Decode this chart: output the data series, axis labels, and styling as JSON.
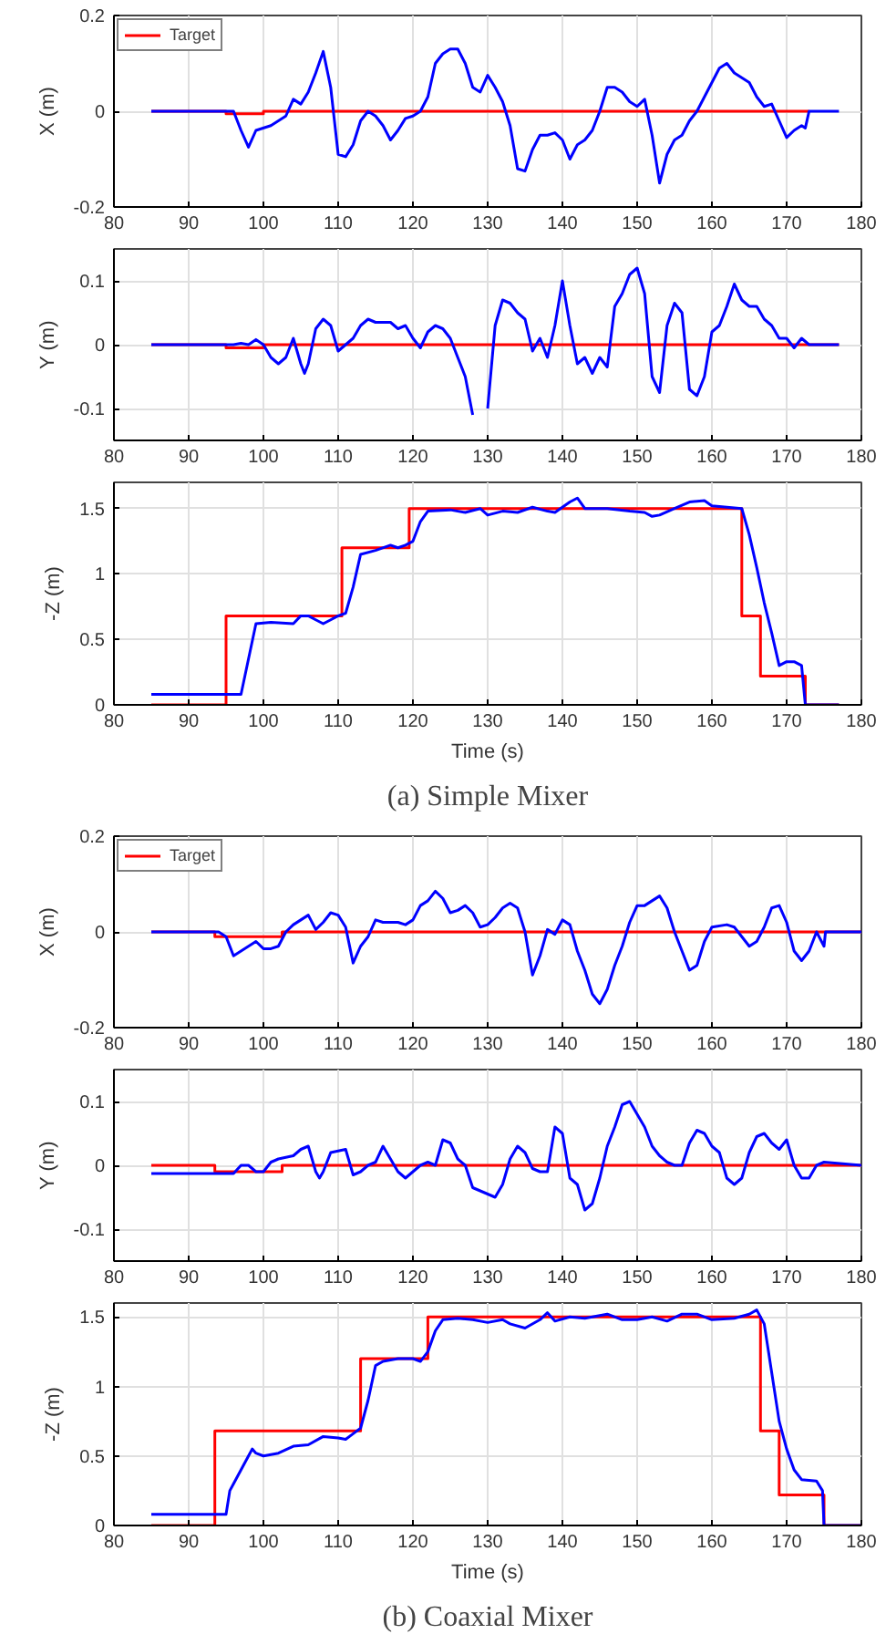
{
  "chart_data": [
    {
      "type": "line",
      "ylabel": "X (m)",
      "xlim": [
        80,
        180
      ],
      "xticks": [
        80,
        90,
        100,
        110,
        120,
        130,
        140,
        150,
        160,
        170,
        180
      ],
      "ylim": [
        -0.2,
        0.2
      ],
      "yticks": [
        -0.2,
        0,
        0.2
      ],
      "grid": true,
      "legend": "top left",
      "series": [
        {
          "name": "Target",
          "color": "#ff0000",
          "x": [
            85,
            95,
            95,
            100,
            100,
            173
          ],
          "values": [
            0,
            0,
            -0.005,
            -0.005,
            0,
            0
          ]
        },
        {
          "color": "#0000ff",
          "x": [
            85,
            96,
            97,
            98,
            99,
            101,
            103,
            104,
            105,
            106,
            107,
            108,
            109,
            110,
            111,
            112,
            113,
            114,
            115,
            116,
            117,
            118,
            119,
            120,
            121,
            122,
            123,
            124,
            125,
            126,
            127,
            128,
            129,
            130,
            131,
            132,
            133,
            134,
            135,
            136,
            137,
            138,
            139,
            140,
            141,
            142,
            143,
            144,
            145,
            146,
            147,
            148,
            149,
            150,
            151,
            152,
            153,
            154,
            155,
            156,
            157,
            158,
            159,
            160,
            161,
            162,
            163,
            164,
            165,
            166,
            167,
            168,
            169,
            170,
            171,
            172,
            172.5,
            173,
            177
          ],
          "values": [
            0,
            0,
            -0.04,
            -0.075,
            -0.04,
            -0.03,
            -0.01,
            0.025,
            0.015,
            0.04,
            0.08,
            0.125,
            0.05,
            -0.09,
            -0.095,
            -0.07,
            -0.02,
            0,
            -0.01,
            -0.03,
            -0.06,
            -0.04,
            -0.015,
            -0.01,
            0,
            0.03,
            0.1,
            0.12,
            0.13,
            0.13,
            0.1,
            0.05,
            0.04,
            0.075,
            0.05,
            0.02,
            -0.03,
            -0.12,
            -0.125,
            -0.08,
            -0.05,
            -0.05,
            -0.045,
            -0.06,
            -0.1,
            -0.07,
            -0.06,
            -0.04,
            0,
            0.05,
            0.05,
            0.04,
            0.02,
            0.01,
            0.025,
            -0.05,
            -0.15,
            -0.09,
            -0.06,
            -0.05,
            -0.02,
            0,
            0.03,
            0.06,
            0.09,
            0.1,
            0.08,
            0.07,
            0.06,
            0.03,
            0.01,
            0.015,
            -0.02,
            -0.055,
            -0.04,
            -0.03,
            -0.035,
            0,
            0
          ]
        }
      ]
    },
    {
      "type": "line",
      "ylabel": "Y (m)",
      "xlim": [
        80,
        180
      ],
      "xticks": [
        80,
        90,
        100,
        110,
        120,
        130,
        140,
        150,
        160,
        170,
        180
      ],
      "ylim": [
        -0.15,
        0.15
      ],
      "yticks": [
        -0.1,
        0,
        0.1
      ],
      "grid": true,
      "series": [
        {
          "color": "#ff0000",
          "x": [
            85,
            95,
            95,
            100,
            100,
            177
          ],
          "values": [
            0,
            0,
            -0.005,
            -0.005,
            0,
            0
          ]
        },
        {
          "color": "#0000ff",
          "x": [
            85,
            96,
            97,
            98,
            99,
            100,
            101,
            102,
            103,
            104,
            105,
            105.5,
            106,
            107,
            108,
            109,
            110,
            111,
            112,
            113,
            114,
            115,
            117,
            118,
            119,
            120,
            121,
            122,
            123,
            124,
            125,
            126,
            127,
            128,
            129,
            129.8,
            130,
            131,
            132,
            133,
            134,
            135,
            136,
            137,
            138,
            139,
            140,
            141,
            142,
            143,
            144,
            145,
            146,
            147,
            148,
            149,
            150,
            151,
            152,
            153,
            154,
            155,
            156,
            157,
            158,
            159,
            160,
            161,
            162,
            163,
            164,
            165,
            166,
            167,
            168,
            169,
            170,
            171,
            172,
            173,
            177
          ],
          "values": [
            0,
            0,
            0.002,
            0,
            0.008,
            0,
            -0.02,
            -0.03,
            -0.02,
            0.01,
            -0.03,
            -0.045,
            -0.03,
            0.025,
            0.04,
            0.03,
            -0.01,
            0,
            0.01,
            0.03,
            0.04,
            0.035,
            0.035,
            0.025,
            0.03,
            0.01,
            -0.005,
            0.02,
            0.03,
            0.025,
            0.01,
            -0.02,
            -0.05,
            -0.11,
            null,
            null,
            -0.1,
            0.03,
            0.07,
            0.065,
            0.05,
            0.04,
            -0.01,
            0.01,
            -0.02,
            0.03,
            0.1,
            0.03,
            -0.03,
            -0.02,
            -0.045,
            -0.02,
            -0.035,
            0.06,
            0.08,
            0.11,
            0.12,
            0.08,
            -0.05,
            -0.075,
            0.03,
            0.065,
            0.05,
            -0.07,
            -0.08,
            -0.05,
            0.02,
            0.03,
            0.06,
            0.095,
            0.07,
            0.06,
            0.06,
            0.04,
            0.03,
            0.01,
            0.01,
            -0.005,
            0.01,
            0,
            0
          ]
        }
      ]
    },
    {
      "type": "line",
      "ylabel": "-Z (m)",
      "xlabel": "Time (s)",
      "annotations": [
        "(a) Simple Mixer"
      ],
      "xlim": [
        80,
        180
      ],
      "xticks": [
        80,
        90,
        100,
        110,
        120,
        130,
        140,
        150,
        160,
        170,
        180
      ],
      "ylim": [
        0,
        1.7
      ],
      "yticks": [
        0,
        0.5,
        1,
        1.5
      ],
      "grid": true,
      "series": [
        {
          "color": "#ff0000",
          "x": [
            85,
            95,
            95,
            110.5,
            110.5,
            119.5,
            119.5,
            164,
            164,
            166.5,
            166.5,
            172.5,
            172.5,
            177
          ],
          "values": [
            0,
            0,
            0.68,
            0.68,
            1.2,
            1.2,
            1.5,
            1.5,
            0.68,
            0.68,
            0.22,
            0.22,
            0,
            0
          ]
        },
        {
          "color": "#0000ff",
          "x": [
            85,
            97,
            98,
            99,
            101,
            104,
            105,
            106,
            107,
            108,
            109,
            110,
            111,
            112,
            113,
            115,
            117,
            118,
            119,
            120,
            121,
            122,
            125,
            127,
            129,
            130,
            132,
            134,
            136,
            138,
            139,
            141,
            142,
            143,
            146,
            149,
            151,
            152,
            153,
            155,
            157,
            159,
            160,
            164,
            165,
            166,
            167,
            168,
            169,
            170,
            171,
            172,
            172.5,
            177
          ],
          "values": [
            0.08,
            0.08,
            0.35,
            0.62,
            0.63,
            0.62,
            0.68,
            0.68,
            0.65,
            0.62,
            0.65,
            0.68,
            0.7,
            0.9,
            1.15,
            1.18,
            1.22,
            1.2,
            1.22,
            1.25,
            1.4,
            1.48,
            1.49,
            1.47,
            1.5,
            1.45,
            1.48,
            1.47,
            1.51,
            1.48,
            1.47,
            1.55,
            1.58,
            1.5,
            1.5,
            1.48,
            1.47,
            1.44,
            1.45,
            1.5,
            1.55,
            1.56,
            1.52,
            1.5,
            1.3,
            1.05,
            0.78,
            0.55,
            0.3,
            0.33,
            0.33,
            0.3,
            0,
            0
          ]
        }
      ]
    },
    {
      "type": "line",
      "ylabel": "X (m)",
      "xlim": [
        80,
        180
      ],
      "xticks": [
        80,
        90,
        100,
        110,
        120,
        130,
        140,
        150,
        160,
        170,
        180
      ],
      "ylim": [
        -0.2,
        0.2
      ],
      "yticks": [
        -0.2,
        0,
        0.2
      ],
      "grid": true,
      "legend": "top left",
      "series": [
        {
          "name": "Target",
          "color": "#ff0000",
          "x": [
            85,
            93.5,
            93.5,
            102.5,
            102.5,
            180
          ],
          "values": [
            0,
            0,
            -0.01,
            -0.01,
            0,
            0
          ]
        },
        {
          "color": "#0000ff",
          "x": [
            85,
            94,
            95,
            96,
            97,
            98,
            99,
            100,
            101,
            102,
            103,
            104,
            105,
            106,
            107,
            108,
            109,
            110,
            111,
            112,
            113,
            114,
            115,
            116,
            118,
            119,
            120,
            121,
            122,
            123,
            124,
            125,
            126,
            127,
            128,
            129,
            130,
            131,
            132,
            133,
            134,
            135,
            136,
            137,
            138,
            139,
            140,
            141,
            142,
            143,
            144,
            145,
            146,
            147,
            148,
            149,
            150,
            151,
            152,
            153,
            154,
            155,
            156,
            157,
            158,
            159,
            160,
            162,
            163,
            164,
            165,
            166,
            167,
            168,
            169,
            170,
            171,
            172,
            173,
            174,
            175,
            175.2,
            180
          ],
          "values": [
            0,
            0,
            -0.01,
            -0.05,
            -0.04,
            -0.03,
            -0.02,
            -0.035,
            -0.035,
            -0.03,
            0,
            0.015,
            0.025,
            0.035,
            0.005,
            0.02,
            0.04,
            0.035,
            0.01,
            -0.065,
            -0.03,
            -0.01,
            0.025,
            0.02,
            0.02,
            0.015,
            0.025,
            0.055,
            0.065,
            0.085,
            0.07,
            0.04,
            0.045,
            0.055,
            0.04,
            0.01,
            0.015,
            0.03,
            0.05,
            0.06,
            0.05,
            0,
            -0.09,
            -0.05,
            0.005,
            -0.005,
            0.025,
            0.015,
            -0.04,
            -0.08,
            -0.13,
            -0.15,
            -0.12,
            -0.07,
            -0.03,
            0.02,
            0.055,
            0.055,
            0.065,
            0.075,
            0.05,
            0,
            -0.04,
            -0.08,
            -0.07,
            -0.02,
            0.01,
            0.015,
            0.01,
            -0.01,
            -0.03,
            -0.02,
            0.01,
            0.05,
            0.055,
            0.02,
            -0.04,
            -0.06,
            -0.04,
            0,
            -0.03,
            0,
            0
          ]
        }
      ]
    },
    {
      "type": "line",
      "ylabel": "Y (m)",
      "xlim": [
        80,
        180
      ],
      "xticks": [
        80,
        90,
        100,
        110,
        120,
        130,
        140,
        150,
        160,
        170,
        180
      ],
      "ylim": [
        -0.15,
        0.15
      ],
      "yticks": [
        -0.1,
        0,
        0.1
      ],
      "grid": true,
      "series": [
        {
          "color": "#ff0000",
          "x": [
            85,
            93.5,
            93.5,
            102.5,
            102.5,
            180
          ],
          "values": [
            0,
            0,
            -0.01,
            -0.01,
            0,
            0
          ]
        },
        {
          "color": "#0000ff",
          "x": [
            85,
            96,
            97,
            98,
            99,
            100,
            101,
            102,
            104,
            105,
            106,
            107,
            107.5,
            108,
            109,
            111,
            112,
            113,
            114,
            115,
            116,
            117,
            118,
            119,
            120,
            121,
            122,
            123,
            124,
            125,
            126,
            127,
            128,
            129,
            130,
            131,
            132,
            133,
            134,
            135,
            136,
            137,
            138,
            139,
            140,
            141,
            142,
            143,
            144,
            145,
            146,
            147,
            148,
            149,
            150,
            151,
            152,
            153,
            154,
            155,
            156,
            157,
            158,
            159,
            160,
            161,
            162,
            163,
            164,
            165,
            166,
            167,
            168,
            169,
            170,
            171,
            172,
            173,
            174,
            175,
            180
          ],
          "values": [
            -0.013,
            -0.013,
            0,
            0,
            -0.01,
            -0.01,
            0.005,
            0.01,
            0.015,
            0.025,
            0.03,
            -0.01,
            -0.02,
            -0.01,
            0.02,
            0.025,
            -0.015,
            -0.01,
            0,
            0.005,
            0.03,
            0.01,
            -0.01,
            -0.02,
            -0.01,
            0,
            0.005,
            0,
            0.04,
            0.035,
            0.01,
            0,
            -0.035,
            -0.04,
            -0.045,
            -0.05,
            -0.03,
            0.01,
            0.03,
            0.02,
            -0.005,
            -0.01,
            -0.01,
            0.06,
            0.05,
            -0.02,
            -0.03,
            -0.07,
            -0.06,
            -0.02,
            0.03,
            0.06,
            0.095,
            0.1,
            0.08,
            0.06,
            0.03,
            0.015,
            0.005,
            0,
            0,
            0.035,
            0.055,
            0.05,
            0.03,
            0.02,
            -0.02,
            -0.03,
            -0.02,
            0.02,
            0.045,
            0.05,
            0.035,
            0.025,
            0.04,
            0,
            -0.02,
            -0.02,
            0,
            0.005,
            0
          ]
        }
      ]
    },
    {
      "type": "line",
      "ylabel": "-Z (m)",
      "xlabel": "Time (s)",
      "annotations": [
        "(b) Coaxial Mixer"
      ],
      "xlim": [
        80,
        180
      ],
      "xticks": [
        80,
        90,
        100,
        110,
        120,
        130,
        140,
        150,
        160,
        170,
        180
      ],
      "ylim": [
        0,
        1.6
      ],
      "yticks": [
        0,
        0.5,
        1,
        1.5
      ],
      "grid": true,
      "series": [
        {
          "color": "#ff0000",
          "x": [
            85,
            93.5,
            93.5,
            113,
            113,
            122,
            122,
            166.5,
            166.5,
            169,
            169,
            175,
            175,
            180
          ],
          "values": [
            0,
            0,
            0.68,
            0.68,
            1.2,
            1.2,
            1.5,
            1.5,
            0.68,
            0.68,
            0.22,
            0.22,
            0,
            0
          ]
        },
        {
          "color": "#0000ff",
          "x": [
            85,
            95,
            95.5,
            96,
            97,
            98,
            98.5,
            99,
            100,
            102,
            104,
            106,
            108,
            110,
            111,
            112,
            113,
            114,
            115,
            116,
            118,
            120,
            121,
            122,
            123,
            124,
            126,
            128,
            130,
            132,
            133,
            135,
            137,
            138,
            139,
            141,
            143,
            146,
            148,
            150,
            152,
            154,
            156,
            158,
            160,
            163,
            165,
            166,
            167,
            168,
            169,
            170,
            171,
            172,
            174,
            174.8,
            175,
            180
          ],
          "values": [
            0.08,
            0.08,
            0.25,
            0.3,
            0.4,
            0.5,
            0.55,
            0.52,
            0.5,
            0.52,
            0.57,
            0.58,
            0.64,
            0.63,
            0.62,
            0.66,
            0.7,
            0.9,
            1.15,
            1.18,
            1.2,
            1.2,
            1.18,
            1.25,
            1.4,
            1.48,
            1.49,
            1.48,
            1.46,
            1.48,
            1.45,
            1.42,
            1.48,
            1.53,
            1.47,
            1.5,
            1.49,
            1.52,
            1.48,
            1.48,
            1.5,
            1.47,
            1.52,
            1.52,
            1.48,
            1.49,
            1.52,
            1.55,
            1.45,
            1.1,
            0.75,
            0.55,
            0.4,
            0.33,
            0.32,
            0.25,
            0,
            0
          ]
        }
      ]
    }
  ]
}
